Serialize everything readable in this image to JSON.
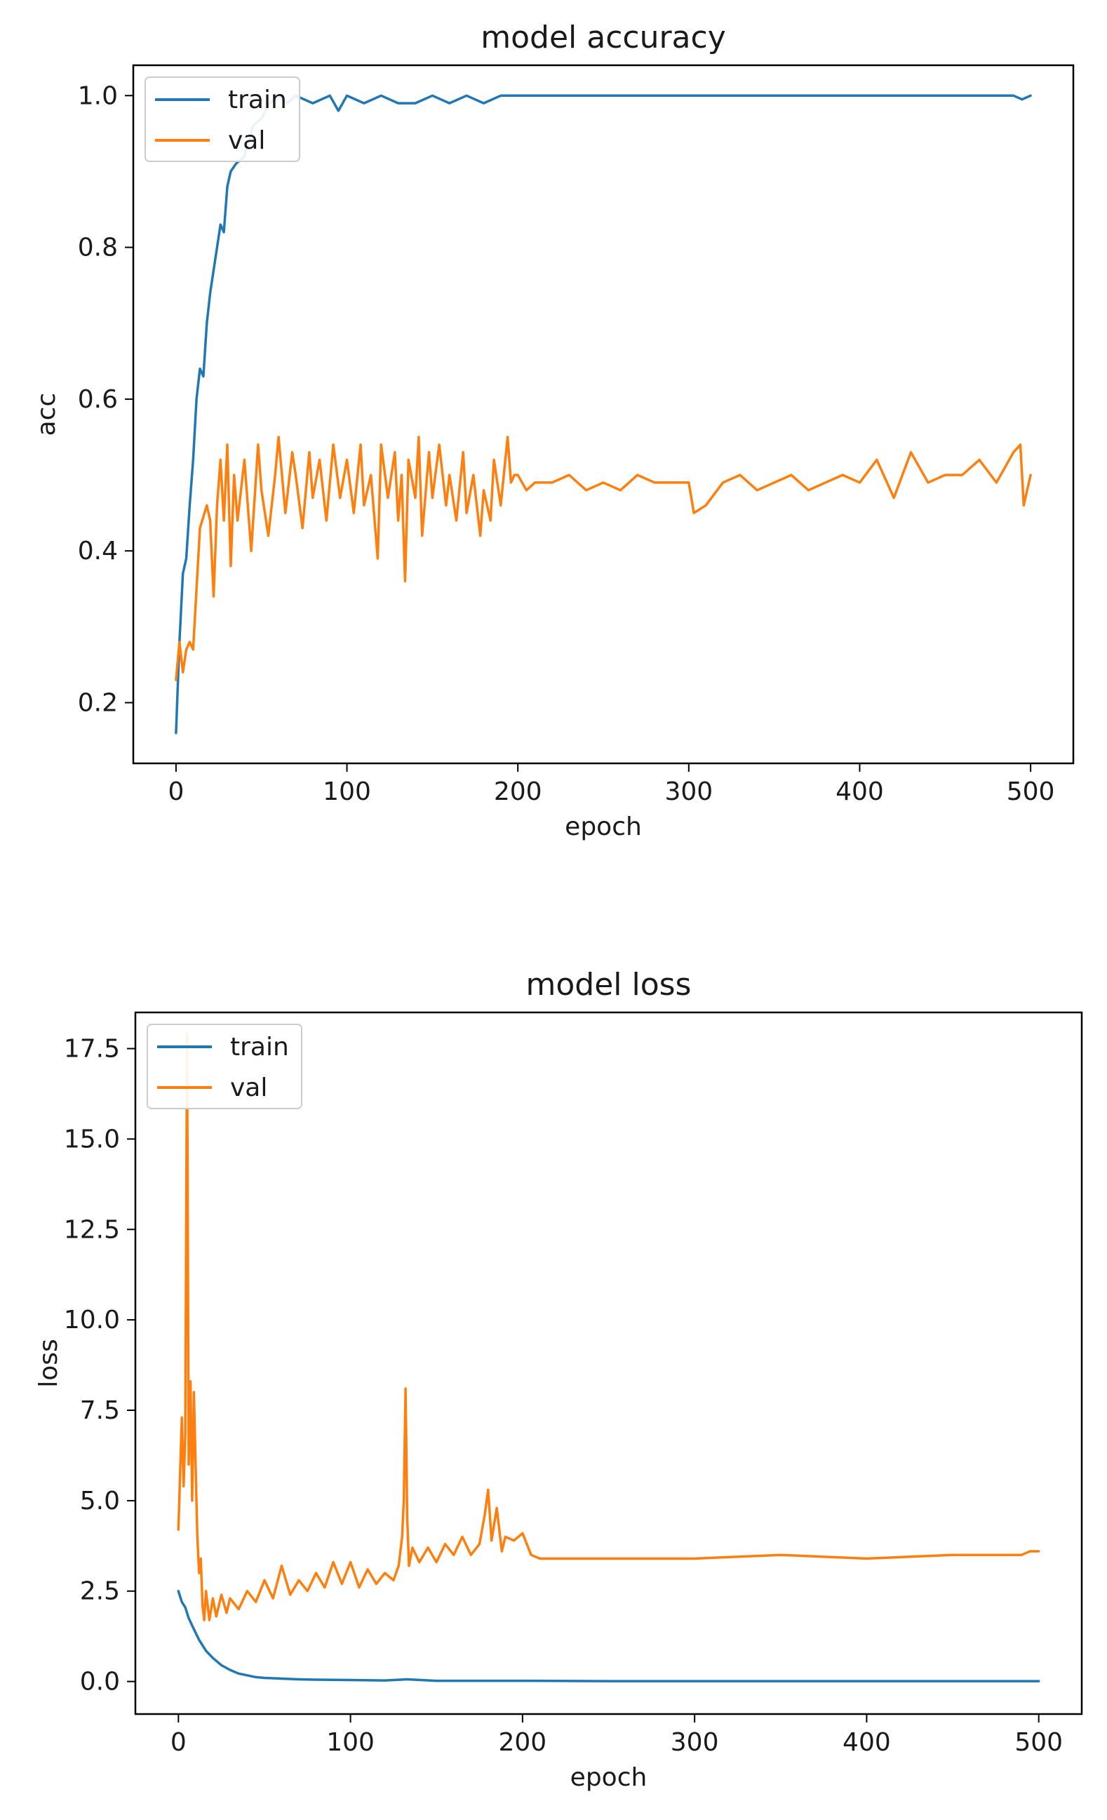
{
  "chart_data": [
    {
      "type": "line",
      "title": "model accuracy",
      "xlabel": "epoch",
      "ylabel": "acc",
      "xlim": [
        -25,
        525
      ],
      "ylim": [
        0.12,
        1.04
      ],
      "xticks": [
        0,
        100,
        200,
        300,
        400,
        500
      ],
      "yticks": [
        0.2,
        0.4,
        0.6,
        0.8,
        1.0
      ],
      "xtick_labels": [
        "0",
        "100",
        "200",
        "300",
        "400",
        "500"
      ],
      "ytick_labels": [
        "0.2",
        "0.4",
        "0.6",
        "0.8",
        "1.0"
      ],
      "grid": false,
      "legend_position": "top-left",
      "series": [
        {
          "name": "train",
          "color": "#1f77b4",
          "x": [
            0,
            2,
            4,
            6,
            8,
            10,
            12,
            14,
            16,
            18,
            20,
            22,
            24,
            26,
            28,
            30,
            32,
            35,
            40,
            45,
            50,
            55,
            60,
            65,
            70,
            80,
            90,
            95,
            100,
            110,
            120,
            130,
            140,
            150,
            160,
            170,
            180,
            190,
            200,
            220,
            250,
            300,
            350,
            400,
            450,
            490,
            495,
            500
          ],
          "y": [
            0.16,
            0.28,
            0.37,
            0.39,
            0.46,
            0.52,
            0.6,
            0.64,
            0.63,
            0.7,
            0.74,
            0.77,
            0.8,
            0.83,
            0.82,
            0.88,
            0.9,
            0.91,
            0.92,
            0.96,
            0.97,
            0.99,
            1.0,
            0.99,
            1.0,
            0.99,
            1.0,
            0.98,
            1.0,
            0.99,
            1.0,
            0.99,
            0.99,
            1.0,
            0.99,
            1.0,
            0.99,
            1.0,
            1.0,
            1.0,
            1.0,
            1.0,
            1.0,
            1.0,
            1.0,
            1.0,
            0.995,
            1.0
          ]
        },
        {
          "name": "val",
          "color": "#ff7f0e",
          "x": [
            0,
            2,
            4,
            6,
            8,
            10,
            14,
            18,
            20,
            22,
            24,
            26,
            28,
            30,
            32,
            34,
            36,
            40,
            44,
            48,
            50,
            54,
            58,
            60,
            64,
            68,
            70,
            74,
            78,
            80,
            84,
            88,
            92,
            96,
            100,
            104,
            108,
            110,
            114,
            118,
            120,
            124,
            128,
            130,
            132,
            134,
            136,
            140,
            142,
            144,
            148,
            150,
            154,
            158,
            160,
            164,
            168,
            170,
            174,
            178,
            180,
            184,
            186,
            190,
            194,
            196,
            198,
            200,
            205,
            210,
            220,
            230,
            240,
            250,
            260,
            270,
            280,
            290,
            300,
            303,
            310,
            320,
            330,
            340,
            350,
            360,
            370,
            380,
            390,
            400,
            410,
            420,
            430,
            440,
            450,
            460,
            470,
            480,
            490,
            494,
            496,
            500
          ],
          "y": [
            0.23,
            0.28,
            0.24,
            0.27,
            0.28,
            0.27,
            0.43,
            0.46,
            0.44,
            0.34,
            0.46,
            0.52,
            0.44,
            0.54,
            0.38,
            0.5,
            0.44,
            0.52,
            0.4,
            0.54,
            0.48,
            0.42,
            0.5,
            0.55,
            0.45,
            0.53,
            0.5,
            0.43,
            0.53,
            0.47,
            0.52,
            0.44,
            0.54,
            0.47,
            0.52,
            0.45,
            0.54,
            0.46,
            0.5,
            0.39,
            0.54,
            0.47,
            0.53,
            0.44,
            0.5,
            0.36,
            0.52,
            0.47,
            0.55,
            0.42,
            0.53,
            0.47,
            0.54,
            0.46,
            0.5,
            0.44,
            0.53,
            0.45,
            0.5,
            0.42,
            0.48,
            0.44,
            0.52,
            0.46,
            0.55,
            0.49,
            0.5,
            0.5,
            0.48,
            0.49,
            0.49,
            0.5,
            0.48,
            0.49,
            0.48,
            0.5,
            0.49,
            0.49,
            0.49,
            0.45,
            0.46,
            0.49,
            0.5,
            0.48,
            0.49,
            0.5,
            0.48,
            0.49,
            0.5,
            0.49,
            0.52,
            0.47,
            0.53,
            0.49,
            0.5,
            0.5,
            0.52,
            0.49,
            0.53,
            0.54,
            0.46,
            0.5
          ]
        }
      ]
    },
    {
      "type": "line",
      "title": "model loss",
      "xlabel": "epoch",
      "ylabel": "loss",
      "xlim": [
        -25,
        525
      ],
      "ylim": [
        -0.9,
        18.5
      ],
      "xticks": [
        0,
        100,
        200,
        300,
        400,
        500
      ],
      "yticks": [
        0.0,
        2.5,
        5.0,
        7.5,
        10.0,
        12.5,
        15.0,
        17.5
      ],
      "xtick_labels": [
        "0",
        "100",
        "200",
        "300",
        "400",
        "500"
      ],
      "ytick_labels": [
        "0.0",
        "2.5",
        "5.0",
        "7.5",
        "10.0",
        "12.5",
        "15.0",
        "17.5"
      ],
      "grid": false,
      "legend_position": "top-left",
      "series": [
        {
          "name": "train",
          "color": "#1f77b4",
          "x": [
            0,
            2,
            4,
            6,
            8,
            10,
            12,
            14,
            16,
            20,
            25,
            30,
            35,
            40,
            45,
            50,
            60,
            70,
            80,
            100,
            120,
            133,
            150,
            200,
            250,
            300,
            400,
            500
          ],
          "y": [
            2.5,
            2.2,
            2.05,
            1.75,
            1.55,
            1.35,
            1.15,
            1.0,
            0.85,
            0.65,
            0.45,
            0.32,
            0.22,
            0.17,
            0.12,
            0.1,
            0.08,
            0.06,
            0.05,
            0.04,
            0.03,
            0.06,
            0.02,
            0.02,
            0.01,
            0.01,
            0.01,
            0.01
          ]
        },
        {
          "name": "val",
          "color": "#ff7f0e",
          "x": [
            0,
            2,
            3,
            4,
            5,
            6,
            7,
            8,
            9,
            10,
            11,
            12,
            13,
            14,
            15,
            16,
            18,
            20,
            22,
            25,
            28,
            30,
            35,
            40,
            45,
            50,
            55,
            60,
            65,
            70,
            75,
            80,
            85,
            90,
            95,
            100,
            105,
            110,
            115,
            120,
            125,
            128,
            130,
            131,
            132,
            133,
            134,
            136,
            140,
            145,
            150,
            155,
            160,
            165,
            170,
            175,
            178,
            180,
            182,
            185,
            188,
            190,
            195,
            200,
            205,
            210,
            250,
            300,
            350,
            400,
            450,
            490,
            495,
            500
          ],
          "y": [
            4.2,
            7.3,
            5.4,
            6.8,
            17.9,
            6.0,
            8.3,
            5.0,
            8.0,
            6.0,
            4.0,
            3.0,
            3.4,
            2.1,
            1.7,
            2.5,
            1.7,
            2.3,
            1.8,
            2.4,
            1.9,
            2.3,
            2.0,
            2.5,
            2.2,
            2.8,
            2.3,
            3.2,
            2.4,
            2.8,
            2.5,
            3.0,
            2.6,
            3.3,
            2.7,
            3.3,
            2.6,
            3.1,
            2.7,
            3.0,
            2.8,
            3.2,
            4.0,
            5.0,
            8.1,
            4.5,
            3.2,
            3.7,
            3.3,
            3.7,
            3.3,
            3.8,
            3.5,
            4.0,
            3.5,
            3.8,
            4.6,
            5.3,
            3.9,
            4.8,
            3.6,
            4.0,
            3.9,
            4.1,
            3.5,
            3.4,
            3.4,
            3.4,
            3.5,
            3.4,
            3.5,
            3.5,
            3.6,
            3.6
          ]
        }
      ]
    }
  ]
}
